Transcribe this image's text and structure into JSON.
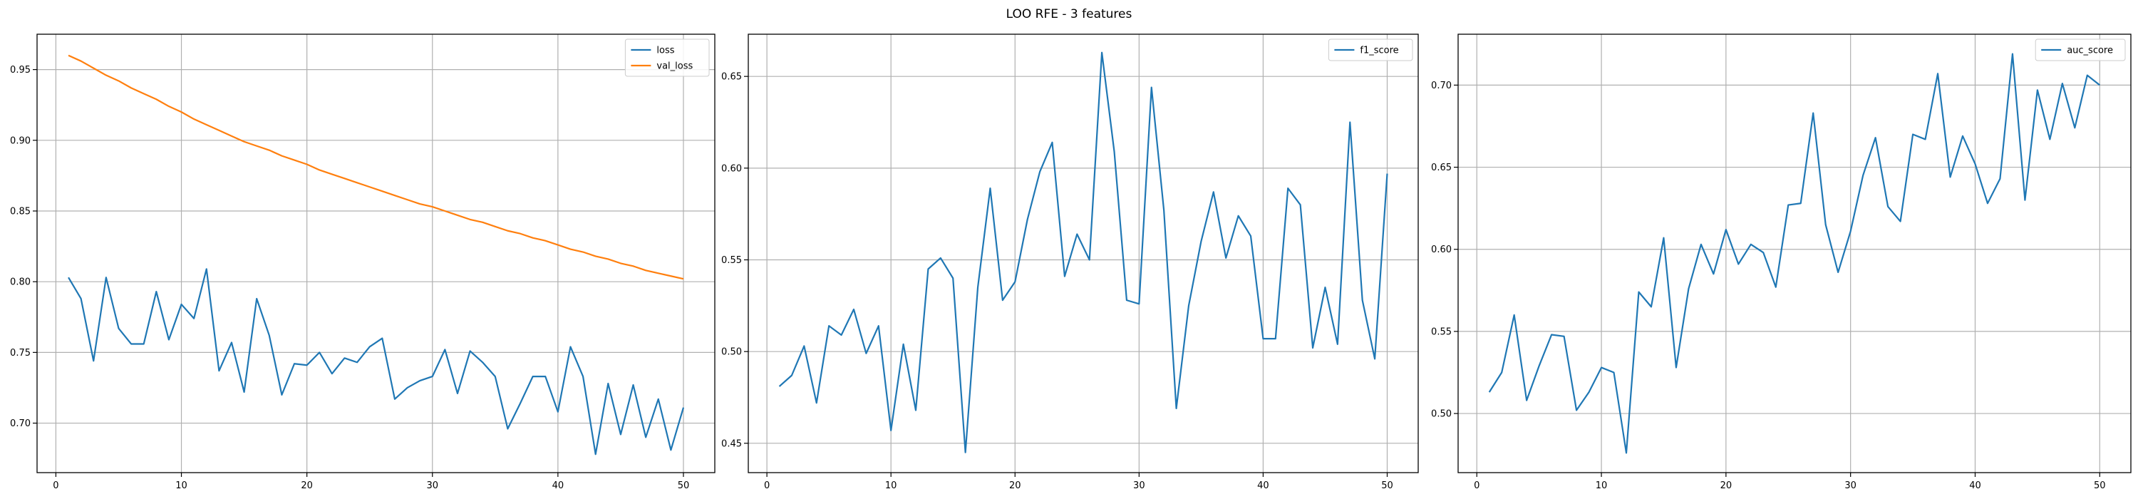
{
  "figure": {
    "title": "LOO RFE - 3 features"
  },
  "chart_data": [
    {
      "type": "line",
      "title": "",
      "xlabel": "",
      "ylabel": "",
      "xlim": [
        -1.5,
        52.5
      ],
      "ylim": [
        0.665,
        0.975
      ],
      "xticks": [
        0,
        10,
        20,
        30,
        40,
        50
      ],
      "yticks": [
        0.7,
        0.75,
        0.8,
        0.85,
        0.9,
        0.95
      ],
      "grid": true,
      "legend": "top-right",
      "x": [
        1,
        2,
        3,
        4,
        5,
        6,
        7,
        8,
        9,
        10,
        11,
        12,
        13,
        14,
        15,
        16,
        17,
        18,
        19,
        20,
        21,
        22,
        23,
        24,
        25,
        26,
        27,
        28,
        29,
        30,
        31,
        32,
        33,
        34,
        35,
        36,
        37,
        38,
        39,
        40,
        41,
        42,
        43,
        44,
        45,
        46,
        47,
        48,
        49,
        50
      ],
      "series": [
        {
          "name": "loss",
          "color": "#1f77b4",
          "values": [
            0.803,
            0.788,
            0.744,
            0.803,
            0.767,
            0.756,
            0.756,
            0.793,
            0.759,
            0.784,
            0.774,
            0.809,
            0.737,
            0.757,
            0.722,
            0.788,
            0.762,
            0.72,
            0.742,
            0.741,
            0.75,
            0.735,
            0.746,
            0.743,
            0.754,
            0.76,
            0.717,
            0.725,
            0.73,
            0.733,
            0.752,
            0.721,
            0.751,
            0.743,
            0.733,
            0.696,
            0.714,
            0.733,
            0.733,
            0.708,
            0.754,
            0.733,
            0.678,
            0.728,
            0.692,
            0.727,
            0.69,
            0.717,
            0.681,
            0.711
          ]
        },
        {
          "name": "val_loss",
          "color": "#ff7f0e",
          "values": [
            0.96,
            0.956,
            0.951,
            0.946,
            0.942,
            0.937,
            0.933,
            0.929,
            0.924,
            0.92,
            0.915,
            0.911,
            0.907,
            0.903,
            0.899,
            0.896,
            0.893,
            0.889,
            0.886,
            0.883,
            0.879,
            0.876,
            0.873,
            0.87,
            0.867,
            0.864,
            0.861,
            0.858,
            0.855,
            0.853,
            0.85,
            0.847,
            0.844,
            0.842,
            0.839,
            0.836,
            0.834,
            0.831,
            0.829,
            0.826,
            0.823,
            0.821,
            0.818,
            0.816,
            0.813,
            0.811,
            0.808,
            0.806,
            0.804,
            0.802
          ]
        }
      ]
    },
    {
      "type": "line",
      "title": "",
      "xlabel": "",
      "ylabel": "",
      "xlim": [
        -1.5,
        52.5
      ],
      "ylim": [
        0.434,
        0.673
      ],
      "xticks": [
        0,
        10,
        20,
        30,
        40,
        50
      ],
      "yticks": [
        0.45,
        0.5,
        0.55,
        0.6,
        0.65
      ],
      "grid": true,
      "legend": "top-right",
      "x": [
        1,
        2,
        3,
        4,
        5,
        6,
        7,
        8,
        9,
        10,
        11,
        12,
        13,
        14,
        15,
        16,
        17,
        18,
        19,
        20,
        21,
        22,
        23,
        24,
        25,
        26,
        27,
        28,
        29,
        30,
        31,
        32,
        33,
        34,
        35,
        36,
        37,
        38,
        39,
        40,
        41,
        42,
        43,
        44,
        45,
        46,
        47,
        48,
        49,
        50
      ],
      "series": [
        {
          "name": "f1_score",
          "color": "#1f77b4",
          "values": [
            0.481,
            0.487,
            0.503,
            0.472,
            0.514,
            0.509,
            0.523,
            0.499,
            0.514,
            0.457,
            0.504,
            0.468,
            0.545,
            0.551,
            0.54,
            0.445,
            0.535,
            0.589,
            0.528,
            0.538,
            0.572,
            0.598,
            0.614,
            0.541,
            0.564,
            0.55,
            0.663,
            0.609,
            0.528,
            0.526,
            0.644,
            0.577,
            0.469,
            0.525,
            0.56,
            0.587,
            0.551,
            0.574,
            0.563,
            0.507,
            0.507,
            0.589,
            0.58,
            0.502,
            0.535,
            0.504,
            0.625,
            0.528,
            0.496,
            0.597
          ]
        }
      ]
    },
    {
      "type": "line",
      "title": "",
      "xlabel": "",
      "ylabel": "",
      "xlim": [
        -1.5,
        52.5
      ],
      "ylim": [
        0.464,
        0.731
      ],
      "xticks": [
        0,
        10,
        20,
        30,
        40,
        50
      ],
      "yticks": [
        0.5,
        0.55,
        0.6,
        0.65,
        0.7
      ],
      "grid": true,
      "legend": "top-right",
      "x": [
        1,
        2,
        3,
        4,
        5,
        6,
        7,
        8,
        9,
        10,
        11,
        12,
        13,
        14,
        15,
        16,
        17,
        18,
        19,
        20,
        21,
        22,
        23,
        24,
        25,
        26,
        27,
        28,
        29,
        30,
        31,
        32,
        33,
        34,
        35,
        36,
        37,
        38,
        39,
        40,
        41,
        42,
        43,
        44,
        45,
        46,
        47,
        48,
        49,
        50
      ],
      "series": [
        {
          "name": "auc_score",
          "color": "#1f77b4",
          "values": [
            0.513,
            0.525,
            0.56,
            0.508,
            0.529,
            0.548,
            0.547,
            0.502,
            0.513,
            0.528,
            0.525,
            0.476,
            0.574,
            0.565,
            0.607,
            0.528,
            0.576,
            0.603,
            0.585,
            0.612,
            0.591,
            0.603,
            0.598,
            0.577,
            0.627,
            0.628,
            0.683,
            0.615,
            0.586,
            0.611,
            0.645,
            0.668,
            0.626,
            0.617,
            0.67,
            0.667,
            0.707,
            0.644,
            0.669,
            0.652,
            0.628,
            0.643,
            0.719,
            0.63,
            0.697,
            0.667,
            0.701,
            0.674,
            0.706,
            0.7
          ]
        }
      ]
    }
  ]
}
